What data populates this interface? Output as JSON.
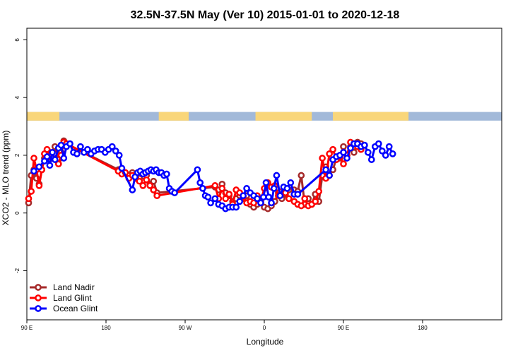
{
  "chart_data": {
    "type": "line",
    "title": "32.5N-37.5N May (Ver 10)   2015-01-01 to 2020-12-18",
    "xlabel": "Longitude",
    "ylabel": "XCO2 - MLO trend (ppm)",
    "xlim": [
      -90,
      180
    ],
    "ylim": [
      -3.7,
      6.4
    ],
    "x_ticks": [
      {
        "value": -90,
        "label": "90 E"
      },
      {
        "value": -45,
        "label": "180"
      },
      {
        "value": 0,
        "label": "90 W"
      },
      {
        "value": 45,
        "label": "0"
      },
      {
        "value": 90,
        "label": "90 E"
      },
      {
        "value": 135,
        "label": "180"
      }
    ],
    "y_ticks": [
      {
        "value": -2,
        "label": "-2"
      },
      {
        "value": 0,
        "label": "0"
      },
      {
        "value": 2,
        "label": "2"
      },
      {
        "value": 4,
        "label": "4"
      },
      {
        "value": 6,
        "label": "6"
      }
    ],
    "land_strip": {
      "y_range": [
        3.2,
        3.5
      ],
      "ocean_color": "#a2b9d9",
      "land_color": "#f9d67a",
      "land_segments": [
        [
          -90,
          -71.5
        ],
        [
          -15,
          2
        ],
        [
          40,
          72
        ],
        [
          84,
          127
        ]
      ]
    },
    "legend_position": "bottom-left",
    "series": [
      {
        "name": "Land Nadir",
        "color": "#a52a2a",
        "x": [
          -89,
          -87.5,
          -86,
          -84.5,
          -83,
          -81.5,
          -80,
          -78.5,
          -77,
          -75.5,
          -74,
          -72,
          -70.5,
          -69,
          -67.5,
          -38,
          -36,
          -34,
          -32,
          -30,
          -28,
          -26,
          -24,
          -22,
          -20,
          -18,
          -16,
          17,
          19,
          21,
          23,
          25,
          27,
          29,
          31,
          33,
          35,
          37,
          39,
          41,
          43,
          45,
          47,
          49,
          51,
          53,
          55,
          57,
          59,
          62,
          64,
          66,
          68,
          70,
          72,
          74,
          76,
          78,
          80,
          82,
          84,
          86,
          88,
          90,
          92,
          94,
          96,
          98,
          100
        ],
        "y": [
          0.35,
          1.3,
          1.5,
          1.2,
          1.0,
          1.5,
          1.9,
          2.0,
          2.1,
          1.9,
          2.3,
          1.85,
          2.1,
          2.5,
          2.4,
          1.5,
          1.4,
          1.4,
          1.3,
          1.4,
          1.2,
          1.2,
          1.1,
          1.3,
          1.0,
          1.1,
          0.7,
          0.9,
          0.8,
          1.0,
          0.7,
          0.6,
          0.4,
          0.5,
          0.6,
          0.5,
          0.6,
          0.3,
          0.2,
          0.3,
          0.35,
          0.2,
          0.15,
          0.25,
          0.4,
          0.7,
          0.5,
          0.65,
          0.8,
          0.8,
          0.75,
          1.3,
          0.3,
          0.5,
          0.3,
          0.65,
          0.4,
          1.3,
          1.6,
          1.3,
          1.5,
          1.9,
          1.9,
          2.3,
          2.0,
          2.3,
          2.1,
          2.45,
          2.4
        ]
      },
      {
        "name": "Land Glint",
        "color": "#ff0000",
        "x": [
          -89,
          -87.5,
          -86,
          -84.5,
          -83,
          -81.5,
          -80,
          -78.5,
          -77,
          -75.5,
          -74,
          -72,
          -70.5,
          -69,
          -67.5,
          -38,
          -36,
          -34,
          -32,
          -30,
          -28,
          -26,
          -24,
          -22,
          -20,
          -18,
          -16,
          17,
          19,
          21,
          23,
          25,
          27,
          29,
          31,
          33,
          35,
          37,
          39,
          41,
          43,
          45,
          47,
          49,
          51,
          53,
          55,
          57,
          59,
          62,
          64,
          66,
          68,
          70,
          72,
          74,
          76,
          78,
          80,
          82,
          84,
          86,
          88,
          90,
          92,
          94,
          96,
          98,
          100
        ],
        "y": [
          0.5,
          0.75,
          1.9,
          1.5,
          0.95,
          1.5,
          2.05,
          2.2,
          1.95,
          1.9,
          2.05,
          1.7,
          2.0,
          2.45,
          2.4,
          1.45,
          1.35,
          1.4,
          1.2,
          1.3,
          1.2,
          1.1,
          0.95,
          1.15,
          0.95,
          0.8,
          0.6,
          0.95,
          0.5,
          0.85,
          0.5,
          0.65,
          0.3,
          0.8,
          0.7,
          0.55,
          0.35,
          0.4,
          0.35,
          0.6,
          0.4,
          0.85,
          1.05,
          0.9,
          0.95,
          0.6,
          0.75,
          0.7,
          0.5,
          0.4,
          0.3,
          0.25,
          0.5,
          0.25,
          0.3,
          0.4,
          0.75,
          1.9,
          1.2,
          2.05,
          2.2,
          1.85,
          1.95,
          1.7,
          2.0,
          2.45,
          2.4,
          2.3,
          2.2
        ]
      },
      {
        "name": "Ocean Glint",
        "color": "#0000ff",
        "x": [
          -86,
          -83,
          -80,
          -78.5,
          -77,
          -75.5,
          -74,
          -72,
          -70.5,
          -69,
          -67.5,
          -65.5,
          -63.5,
          -61.5,
          -59.5,
          -57.5,
          -55.5,
          -53.5,
          -51.5,
          -49.5,
          -47.5,
          -45.5,
          -43.5,
          -41.5,
          -39.5,
          -37.5,
          -36,
          -30,
          -28.5,
          -27,
          -25.5,
          -24,
          -22.5,
          -21,
          -19.5,
          -18,
          -16.5,
          -15,
          -13.5,
          -12,
          -10.5,
          -9,
          -7.5,
          -6,
          7,
          8.5,
          10,
          11.5,
          13,
          14.5,
          17,
          19,
          21,
          23,
          25,
          27,
          29,
          31,
          33,
          35,
          37,
          39,
          41,
          43,
          44.5,
          46,
          47.5,
          49,
          50.5,
          52,
          54,
          56,
          58,
          60,
          62,
          64,
          80,
          82,
          84,
          86,
          88,
          90,
          92,
          94,
          96,
          98,
          100,
          102,
          104,
          106,
          108,
          110,
          112,
          114,
          116,
          118
        ],
        "y": [
          1.45,
          1.6,
          1.8,
          1.95,
          1.65,
          2.1,
          1.85,
          2.25,
          2.35,
          1.9,
          2.3,
          2.4,
          2.1,
          2.05,
          2.3,
          2.1,
          2.2,
          2.05,
          2.15,
          2.2,
          2.2,
          2.1,
          2.2,
          2.3,
          2.15,
          2.0,
          1.55,
          0.8,
          1.25,
          1.4,
          1.45,
          1.35,
          1.4,
          1.45,
          1.5,
          1.45,
          1.5,
          1.4,
          1.4,
          1.3,
          1.35,
          0.85,
          0.75,
          0.7,
          1.5,
          1.05,
          0.85,
          0.6,
          0.55,
          0.35,
          0.5,
          0.3,
          0.25,
          0.15,
          0.2,
          0.2,
          0.2,
          0.4,
          0.6,
          0.85,
          0.7,
          0.6,
          0.5,
          0.35,
          0.55,
          1.05,
          0.55,
          0.35,
          0.85,
          1.3,
          0.6,
          0.9,
          0.85,
          1.05,
          0.65,
          0.65,
          1.5,
          1.3,
          1.85,
          1.95,
          2.0,
          2.1,
          1.9,
          2.25,
          2.4,
          2.4,
          2.3,
          2.35,
          2.1,
          1.85,
          2.3,
          2.4,
          2.15,
          2.0,
          2.3,
          2.05
        ]
      }
    ]
  }
}
